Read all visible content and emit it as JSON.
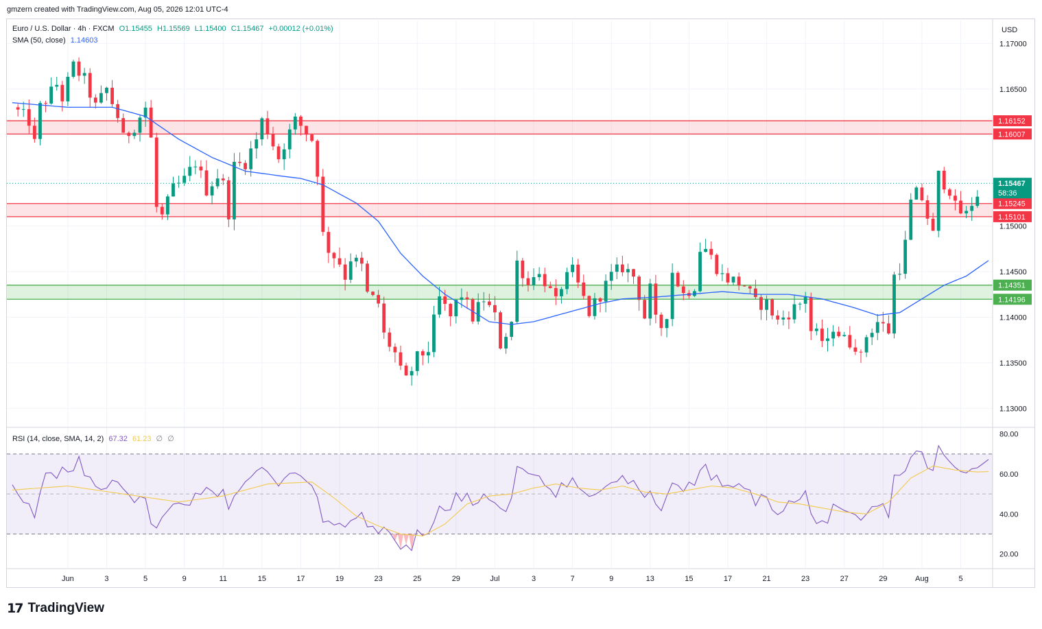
{
  "caption": "gmzern created with TradingView.com, Aug 05, 2026 12:01 UTC-4",
  "header": {
    "symbol": "Euro / U.S. Dollar · 4h · FXCM",
    "open": "O1.15455",
    "high": "H1.15569",
    "low": "L1.15400",
    "close": "C1.15467",
    "change": "+0.00012 (+0.01%)"
  },
  "sma_legend": {
    "label": "SMA (50, close)",
    "value": "1.14603"
  },
  "rsi_legend": {
    "label": "RSI (14, close, SMA, 14, 2)",
    "value": "67.32",
    "ma": "61.23",
    "n1": "∅",
    "n2": "∅"
  },
  "currency": "USD",
  "brand": {
    "mark": "17",
    "name": "TradingView"
  },
  "colors": {
    "up": "#089981",
    "down": "#f23645",
    "sma": "#2962ff",
    "rsi": "#7e57c2",
    "rsi_ma": "#f2c94c",
    "resistance": "#f23645",
    "support": "#4caf50"
  },
  "chart_data": [
    {
      "type": "candlestick",
      "title": "",
      "ylim": [
        1.128,
        1.1725
      ],
      "y_ticks": [
        "1.17000",
        "1.16500",
        "1.16000",
        "1.15500",
        "1.15000",
        "1.14500",
        "1.14000",
        "1.13500",
        "1.13000"
      ],
      "y_tick_values": [
        1.17,
        1.165,
        1.16,
        1.155,
        1.15,
        1.145,
        1.14,
        1.135,
        1.13
      ],
      "x_labels": [
        "Jun",
        "3",
        "5",
        "9",
        "11",
        "15",
        "17",
        "19",
        "23",
        "25",
        "29",
        "Jul",
        "3",
        "7",
        "9",
        "13",
        "15",
        "17",
        "21",
        "23",
        "27",
        "29",
        "Aug",
        "5"
      ],
      "x_label_index": [
        10,
        17,
        24,
        31,
        38,
        45,
        52,
        59,
        66,
        73,
        80,
        87,
        94,
        101,
        108,
        115,
        122,
        129,
        136,
        143,
        150,
        157,
        164,
        171
      ],
      "candle_count": 175,
      "close_path": [
        [
          0,
          1.163
        ],
        [
          3,
          1.1615
        ],
        [
          4,
          1.159
        ],
        [
          5,
          1.163
        ],
        [
          8,
          1.1655
        ],
        [
          9,
          1.164
        ],
        [
          11,
          1.1675
        ],
        [
          13,
          1.166
        ],
        [
          15,
          1.163
        ],
        [
          17,
          1.165
        ],
        [
          19,
          1.162
        ],
        [
          20,
          1.1595
        ],
        [
          22,
          1.161
        ],
        [
          24,
          1.163
        ],
        [
          25,
          1.1595
        ],
        [
          26,
          1.152
        ],
        [
          27,
          1.151
        ],
        [
          29,
          1.154
        ],
        [
          31,
          1.155
        ],
        [
          33,
          1.157
        ],
        [
          35,
          1.154
        ],
        [
          37,
          1.1555
        ],
        [
          38,
          1.1545
        ],
        [
          39,
          1.1515
        ],
        [
          40,
          1.1565
        ],
        [
          42,
          1.157
        ],
        [
          44,
          1.1595
        ],
        [
          45,
          1.1615
        ],
        [
          46,
          1.1605
        ],
        [
          47,
          1.159
        ],
        [
          48,
          1.1575
        ],
        [
          49,
          1.159
        ],
        [
          51,
          1.1615
        ],
        [
          52,
          1.161
        ],
        [
          54,
          1.1595
        ],
        [
          55,
          1.156
        ],
        [
          56,
          1.149
        ],
        [
          57,
          1.1475
        ],
        [
          59,
          1.146
        ],
        [
          60,
          1.1445
        ],
        [
          61,
          1.1465
        ],
        [
          63,
          1.1455
        ],
        [
          64,
          1.1425
        ],
        [
          66,
          1.1415
        ],
        [
          67,
          1.138
        ],
        [
          69,
          1.136
        ],
        [
          70,
          1.134
        ],
        [
          71,
          1.133
        ],
        [
          73,
          1.1355
        ],
        [
          75,
          1.1365
        ],
        [
          76,
          1.1395
        ],
        [
          77,
          1.142
        ],
        [
          79,
          1.14
        ],
        [
          80,
          1.1415
        ],
        [
          81,
          1.1425
        ],
        [
          83,
          1.14
        ],
        [
          85,
          1.142
        ],
        [
          87,
          1.14
        ],
        [
          88,
          1.137
        ],
        [
          90,
          1.1395
        ],
        [
          91,
          1.146
        ],
        [
          92,
          1.145
        ],
        [
          93,
          1.1435
        ],
        [
          94,
          1.145
        ],
        [
          96,
          1.144
        ],
        [
          98,
          1.1415
        ],
        [
          99,
          1.1435
        ],
        [
          101,
          1.145
        ],
        [
          102,
          1.1435
        ],
        [
          103,
          1.142
        ],
        [
          104,
          1.1405
        ],
        [
          106,
          1.1425
        ],
        [
          108,
          1.1445
        ],
        [
          110,
          1.1455
        ],
        [
          112,
          1.1445
        ],
        [
          113,
          1.1425
        ],
        [
          114,
          1.14
        ],
        [
          115,
          1.143
        ],
        [
          116,
          1.1395
        ],
        [
          117,
          1.139
        ],
        [
          118,
          1.1405
        ],
        [
          119,
          1.145
        ],
        [
          121,
          1.1425
        ],
        [
          123,
          1.1435
        ],
        [
          124,
          1.1475
        ],
        [
          125,
          1.1475
        ],
        [
          127,
          1.1455
        ],
        [
          128,
          1.1445
        ],
        [
          130,
          1.144
        ],
        [
          132,
          1.1435
        ],
        [
          133,
          1.1425
        ],
        [
          134,
          1.1415
        ],
        [
          136,
          1.1415
        ],
        [
          137,
          1.1405
        ],
        [
          138,
          1.1395
        ],
        [
          140,
          1.1405
        ],
        [
          142,
          1.1415
        ],
        [
          143,
          1.1425
        ],
        [
          144,
          1.1385
        ],
        [
          146,
          1.1375
        ],
        [
          147,
          1.137
        ],
        [
          148,
          1.139
        ],
        [
          150,
          1.1375
        ],
        [
          152,
          1.137
        ],
        [
          153,
          1.1355
        ],
        [
          154,
          1.138
        ],
        [
          156,
          1.1395
        ],
        [
          157,
          1.139
        ],
        [
          158,
          1.1385
        ],
        [
          159,
          1.1445
        ],
        [
          160,
          1.1455
        ],
        [
          161,
          1.148
        ],
        [
          162,
          1.1525
        ],
        [
          163,
          1.1535
        ],
        [
          164,
          1.153
        ],
        [
          165,
          1.151
        ],
        [
          166,
          1.149
        ],
        [
          167,
          1.1555
        ],
        [
          169,
          1.154
        ],
        [
          170,
          1.152
        ],
        [
          171,
          1.1515
        ],
        [
          172,
          1.1512
        ],
        [
          173,
          1.1525
        ],
        [
          174,
          1.1535
        ],
        [
          175,
          1.1545
        ],
        [
          176,
          1.1547
        ]
      ],
      "sma": {
        "name": "SMA (50, close)",
        "value": "1.14603",
        "path": [
          [
            0,
            1.1635
          ],
          [
            10,
            1.163
          ],
          [
            18,
            1.163
          ],
          [
            24,
            1.162
          ],
          [
            30,
            1.1595
          ],
          [
            36,
            1.1575
          ],
          [
            42,
            1.156
          ],
          [
            48,
            1.1555
          ],
          [
            52,
            1.1552
          ],
          [
            56,
            1.1545
          ],
          [
            62,
            1.1525
          ],
          [
            66,
            1.1505
          ],
          [
            70,
            1.147
          ],
          [
            74,
            1.1445
          ],
          [
            78,
            1.1425
          ],
          [
            82,
            1.141
          ],
          [
            86,
            1.1395
          ],
          [
            90,
            1.1392
          ],
          [
            94,
            1.1395
          ],
          [
            100,
            1.1405
          ],
          [
            106,
            1.1415
          ],
          [
            110,
            1.142
          ],
          [
            116,
            1.1422
          ],
          [
            122,
            1.1425
          ],
          [
            128,
            1.1428
          ],
          [
            134,
            1.1425
          ],
          [
            140,
            1.1425
          ],
          [
            146,
            1.142
          ],
          [
            152,
            1.141
          ],
          [
            156,
            1.1402
          ],
          [
            160,
            1.1405
          ],
          [
            164,
            1.142
          ],
          [
            168,
            1.1435
          ],
          [
            172,
            1.1445
          ],
          [
            176,
            1.1462
          ]
        ]
      },
      "zones": [
        {
          "kind": "resistance",
          "top": 1.16152,
          "bottom": 1.16007,
          "top_label": "1.16152",
          "bottom_label": "1.16007"
        },
        {
          "kind": "resistance",
          "top": 1.15245,
          "bottom": 1.15101,
          "top_label": "1.15245",
          "bottom_label": "1.15101"
        },
        {
          "kind": "support",
          "top": 1.14351,
          "bottom": 1.14196,
          "top_label": "1.14351",
          "bottom_label": "1.14196"
        }
      ],
      "last_price": {
        "value": 1.15467,
        "label": "1.15467",
        "countdown": "58:36"
      }
    },
    {
      "type": "line",
      "title": "",
      "ylim": [
        13,
        83
      ],
      "y_ticks": [
        "80.00",
        "60.00",
        "40.00",
        "20.00"
      ],
      "y_tick_values": [
        80,
        60,
        40,
        20
      ],
      "band": [
        30,
        70
      ],
      "mid": 50,
      "rsi_path": [
        [
          0,
          56
        ],
        [
          3,
          44
        ],
        [
          4,
          38
        ],
        [
          6,
          60
        ],
        [
          8,
          57
        ],
        [
          9,
          62
        ],
        [
          11,
          60
        ],
        [
          12,
          66
        ],
        [
          14,
          56
        ],
        [
          16,
          52
        ],
        [
          18,
          58
        ],
        [
          20,
          55
        ],
        [
          22,
          47
        ],
        [
          24,
          46
        ],
        [
          25,
          38
        ],
        [
          26,
          33
        ],
        [
          28,
          41
        ],
        [
          30,
          46
        ],
        [
          32,
          47
        ],
        [
          34,
          52
        ],
        [
          36,
          50
        ],
        [
          38,
          52
        ],
        [
          39,
          44
        ],
        [
          41,
          54
        ],
        [
          43,
          58
        ],
        [
          45,
          62
        ],
        [
          47,
          58
        ],
        [
          48,
          55
        ],
        [
          50,
          62
        ],
        [
          52,
          60
        ],
        [
          54,
          56
        ],
        [
          55,
          48
        ],
        [
          56,
          36
        ],
        [
          58,
          34
        ],
        [
          60,
          33
        ],
        [
          61,
          38
        ],
        [
          63,
          38
        ],
        [
          64,
          34
        ],
        [
          66,
          33
        ],
        [
          68,
          29
        ],
        [
          70,
          25
        ],
        [
          72,
          22
        ],
        [
          73,
          30
        ],
        [
          75,
          32
        ],
        [
          76,
          36
        ],
        [
          77,
          44
        ],
        [
          79,
          41
        ],
        [
          80,
          48
        ],
        [
          82,
          50
        ],
        [
          83,
          44
        ],
        [
          85,
          49
        ],
        [
          87,
          46
        ],
        [
          88,
          41
        ],
        [
          90,
          46
        ],
        [
          91,
          62
        ],
        [
          92,
          60
        ],
        [
          94,
          62
        ],
        [
          96,
          56
        ],
        [
          98,
          51
        ],
        [
          99,
          55
        ],
        [
          101,
          57
        ],
        [
          102,
          54
        ],
        [
          103,
          50
        ],
        [
          104,
          48
        ],
        [
          106,
          52
        ],
        [
          108,
          56
        ],
        [
          110,
          57
        ],
        [
          112,
          55
        ],
        [
          113,
          50
        ],
        [
          114,
          46
        ],
        [
          115,
          52
        ],
        [
          116,
          45
        ],
        [
          117,
          44
        ],
        [
          118,
          48
        ],
        [
          119,
          58
        ],
        [
          121,
          52
        ],
        [
          123,
          55
        ],
        [
          124,
          63
        ],
        [
          125,
          62
        ],
        [
          127,
          57
        ],
        [
          128,
          54
        ],
        [
          130,
          54
        ],
        [
          132,
          52
        ],
        [
          133,
          50
        ],
        [
          134,
          47
        ],
        [
          136,
          47
        ],
        [
          137,
          44
        ],
        [
          138,
          42
        ],
        [
          140,
          45
        ],
        [
          142,
          47
        ],
        [
          143,
          50
        ],
        [
          144,
          39
        ],
        [
          146,
          37
        ],
        [
          147,
          36
        ],
        [
          148,
          42
        ],
        [
          150,
          39
        ],
        [
          152,
          38
        ],
        [
          153,
          35
        ],
        [
          154,
          40
        ],
        [
          156,
          44
        ],
        [
          157,
          43
        ],
        [
          158,
          41
        ],
        [
          159,
          58
        ],
        [
          160,
          60
        ],
        [
          161,
          63
        ],
        [
          162,
          68
        ],
        [
          163,
          70
        ],
        [
          164,
          69
        ],
        [
          165,
          65
        ],
        [
          166,
          62
        ],
        [
          167,
          72
        ],
        [
          169,
          66
        ],
        [
          170,
          62
        ],
        [
          171,
          60
        ],
        [
          172,
          60
        ],
        [
          173,
          63
        ],
        [
          174,
          65
        ],
        [
          175,
          67
        ],
        [
          176,
          67.3
        ]
      ],
      "ma_path": [
        [
          0,
          52
        ],
        [
          10,
          54
        ],
        [
          20,
          50
        ],
        [
          30,
          46
        ],
        [
          38,
          49
        ],
        [
          46,
          55
        ],
        [
          54,
          56
        ],
        [
          58,
          48
        ],
        [
          62,
          39
        ],
        [
          66,
          34
        ],
        [
          70,
          30
        ],
        [
          74,
          29
        ],
        [
          78,
          35
        ],
        [
          82,
          45
        ],
        [
          86,
          49
        ],
        [
          90,
          50
        ],
        [
          94,
          53
        ],
        [
          98,
          55
        ],
        [
          102,
          53
        ],
        [
          106,
          52
        ],
        [
          110,
          54
        ],
        [
          114,
          51
        ],
        [
          118,
          50
        ],
        [
          122,
          52
        ],
        [
          126,
          54
        ],
        [
          130,
          53
        ],
        [
          134,
          50
        ],
        [
          138,
          46
        ],
        [
          142,
          45
        ],
        [
          146,
          43
        ],
        [
          150,
          41
        ],
        [
          154,
          40
        ],
        [
          158,
          46
        ],
        [
          162,
          58
        ],
        [
          166,
          64
        ],
        [
          170,
          62
        ],
        [
          174,
          61
        ],
        [
          176,
          61.2
        ]
      ]
    }
  ]
}
